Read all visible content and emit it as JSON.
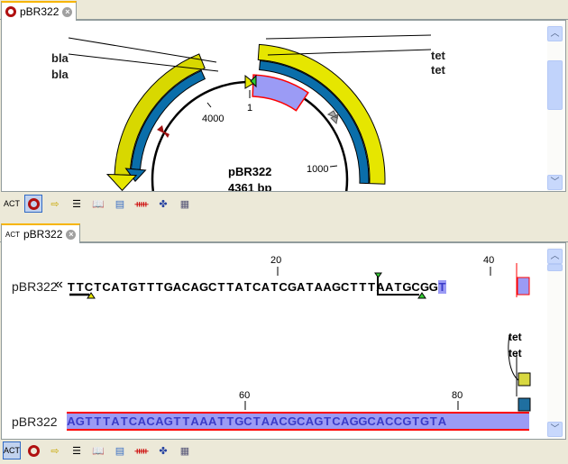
{
  "circular_view": {
    "tab_title": "pBR322",
    "sequence_name": "pBR322",
    "length_label": "4361 bp",
    "ticks": [
      "1",
      "1000",
      "4000"
    ],
    "features": [
      {
        "name": "bla",
        "type": "gene",
        "color": "#e6e600"
      },
      {
        "name": "bla",
        "type": "CDS",
        "color": "#0a6eaa"
      },
      {
        "name": "tet",
        "type": "gene",
        "color": "#e6e600"
      },
      {
        "name": "tet",
        "type": "CDS",
        "color": "#0a6eaa"
      }
    ],
    "selection_color": "#9b9bf5"
  },
  "sequence_view": {
    "tab_title": "pBR322",
    "rows": [
      {
        "label": "pBR322",
        "sequence": "TTCTCATGTTTGACAGCTTATCATCGATAAGCTTTAATGCGGT",
        "ticks": [
          "20",
          "40"
        ]
      },
      {
        "label": "pBR322",
        "sequence": "AGTTTATCACAGTTAAATTGCTAACGCAGTCAGGCACCGTGTA",
        "ticks": [
          "60",
          "80"
        ]
      }
    ],
    "features": [
      "tet",
      "tet"
    ]
  },
  "toolbar_icons": [
    "sequence-view-icon",
    "circular-view-icon",
    "annotation-layout-icon",
    "annotation-table-icon",
    "text-view-icon",
    "history-icon",
    "restriction-sites-icon",
    "primer-icon",
    "alignment-icon"
  ]
}
